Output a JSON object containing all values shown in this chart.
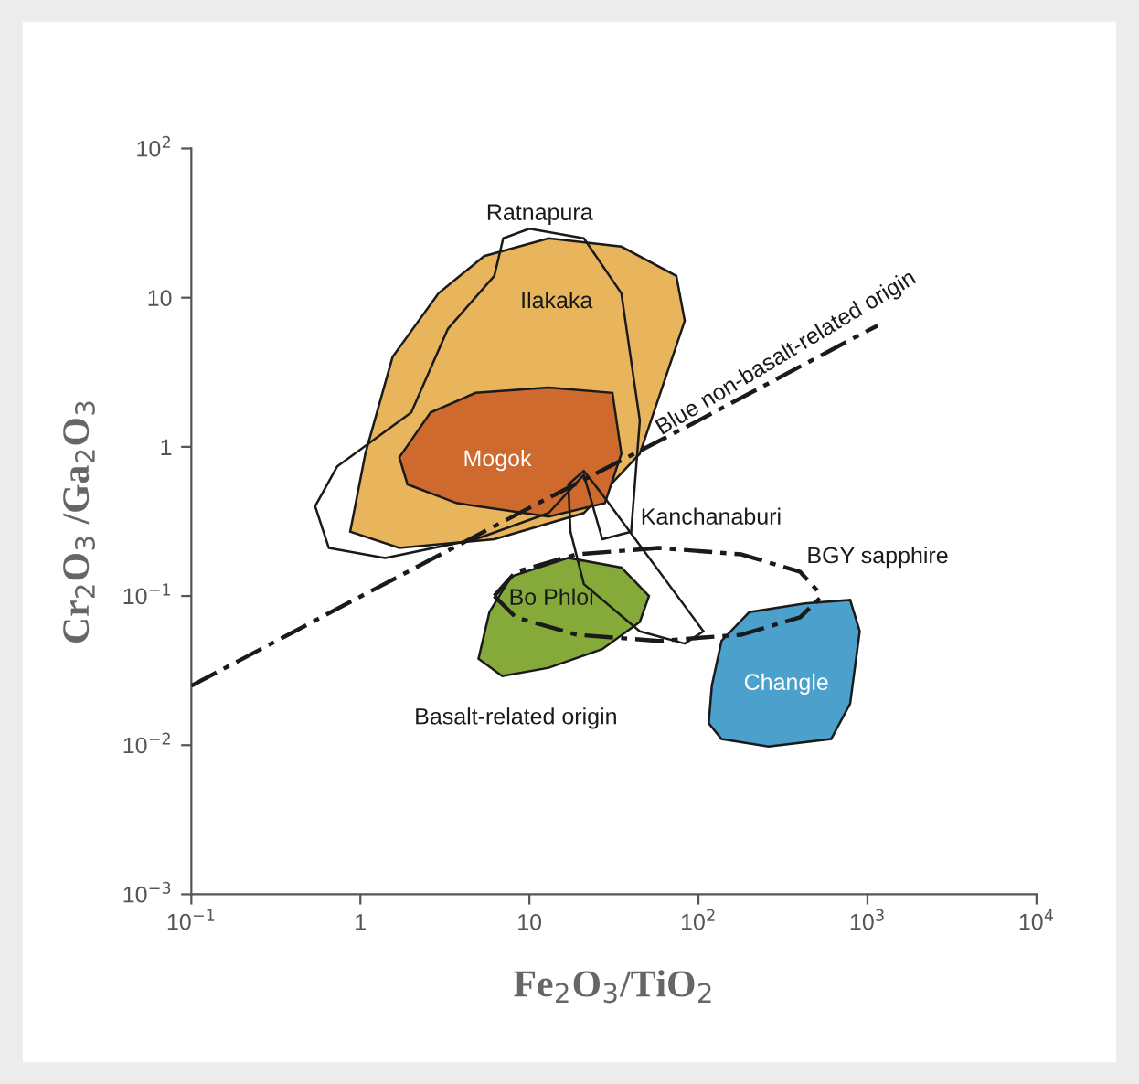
{
  "chart_data": {
    "type": "line",
    "xlabel": "Fe$_{2}$O$_{3}$/TiO$_{2}$",
    "ylabel": "Cr$_{2}$O$_{3}$ /Ga$_{2}$O$_{3}$",
    "log": "xy",
    "grid": false,
    "xlim": [
      0.1,
      10000
    ],
    "ylim": [
      0.001,
      100
    ],
    "xticks": [
      {
        "value": 0.1,
        "label": "10$^{−1}$"
      },
      1,
      10,
      {
        "value": 100,
        "label": "10$^{2}$"
      },
      {
        "value": 1000,
        "label": "10$^{3}$"
      },
      {
        "value": 10000,
        "label": "10$^{4}$"
      }
    ],
    "yticks": [
      {
        "value": 0.001,
        "label": "10$^{−3}$"
      },
      {
        "value": 0.01,
        "label": "10$^{−2}$"
      },
      {
        "value": 0.1,
        "label": "10$^{−1}$"
      },
      1,
      10,
      {
        "value": 100,
        "label": "10$^{2}$"
      }
    ],
    "series": [
      {
        "type": "area",
        "color": "#e9b55c",
        "x": [
          0.87,
          1.07,
          1.55,
          2.9,
          5.4,
          13,
          35,
          74,
          83,
          45,
          21,
          6.2,
          1.7,
          0.87
        ],
        "values": [
          0.27,
          0.9,
          4.0,
          10.7,
          19,
          25,
          22,
          14,
          7,
          0.9,
          0.36,
          0.24,
          0.21,
          0.27
        ]
      },
      {
        "type": "area",
        "color": "#cf6a2e",
        "x": [
          1.7,
          2.6,
          4.8,
          13,
          31,
          35,
          28,
          13,
          3.7,
          1.9,
          1.7
        ],
        "values": [
          0.85,
          1.7,
          2.3,
          2.5,
          2.3,
          0.9,
          0.42,
          0.34,
          0.42,
          0.56,
          0.85
        ]
      },
      {
        "color": "#1a1a1a",
        "x": [
          0.54,
          0.73,
          2.0,
          3.3,
          6.2,
          7.0,
          10,
          21,
          35,
          45,
          40
        ],
        "values": [
          0.4,
          0.74,
          1.7,
          6.2,
          14,
          25,
          29,
          25,
          10.7,
          1.5,
          0.27
        ]
      },
      {
        "color": "#1a1a1a",
        "x": [
          0.54,
          0.65,
          1.4,
          4.8,
          13,
          21,
          27,
          40
        ],
        "values": [
          0.4,
          0.21,
          0.18,
          0.24,
          0.36,
          0.65,
          0.24,
          0.27
        ]
      },
      {
        "type": "area",
        "color": "#86aa3a",
        "x": [
          5.0,
          5.8,
          7.8,
          17,
          35,
          51,
          45,
          27,
          13,
          6.9,
          5.0
        ],
        "values": [
          0.038,
          0.078,
          0.135,
          0.18,
          0.155,
          0.1,
          0.067,
          0.044,
          0.033,
          0.029,
          0.038
        ]
      },
      {
        "type": "area",
        "color": "#4ba0cc",
        "x": [
          120,
          137,
          200,
          425,
          790,
          900,
          790,
          610,
          260,
          137,
          115,
          120
        ],
        "values": [
          0.025,
          0.05,
          0.078,
          0.089,
          0.094,
          0.058,
          0.019,
          0.011,
          0.0098,
          0.011,
          0.014,
          0.025
        ]
      },
      {
        "color": "#1a1a1a",
        "x": [
          17,
          21,
          27,
          107
        ],
        "values": [
          0.56,
          0.69,
          0.48,
          0.058
        ]
      },
      {
        "color": "#1a1a1a",
        "x": [
          17,
          17.5,
          21,
          45,
          83,
          107
        ],
        "values": [
          0.56,
          0.27,
          0.12,
          0.058,
          0.048,
          0.058
        ]
      },
      {
        "color": "#1a1a1a",
        "line_style": "dashed",
        "x": [
          6.2,
          8.3,
          19,
          58,
          180,
          400,
          540
        ],
        "values": [
          0.1,
          0.145,
          0.19,
          0.21,
          0.19,
          0.145,
          0.1
        ]
      },
      {
        "color": "#1a1a1a",
        "line_style": "dashed",
        "x": [
          6.2,
          8.3,
          19,
          58,
          180,
          400,
          540
        ],
        "values": [
          0.1,
          0.072,
          0.055,
          0.05,
          0.055,
          0.072,
          0.1
        ]
      },
      {
        "color": "#1a1a1a",
        "line_style": "dashed",
        "x": [
          0.1,
          1,
          10,
          100,
          1000,
          1150
        ],
        "values": [
          0.025,
          0.099,
          0.39,
          1.5,
          6.0,
          6.5
        ]
      }
    ],
    "annotations": [
      "Ratnapura",
      "Ilakaka",
      "Mogok",
      "Kanchanaburi",
      "BGY sapphire",
      "Bo Phloi",
      "Changle",
      "Basalt-related origin",
      "Blue non-basalt-related origin"
    ]
  }
}
